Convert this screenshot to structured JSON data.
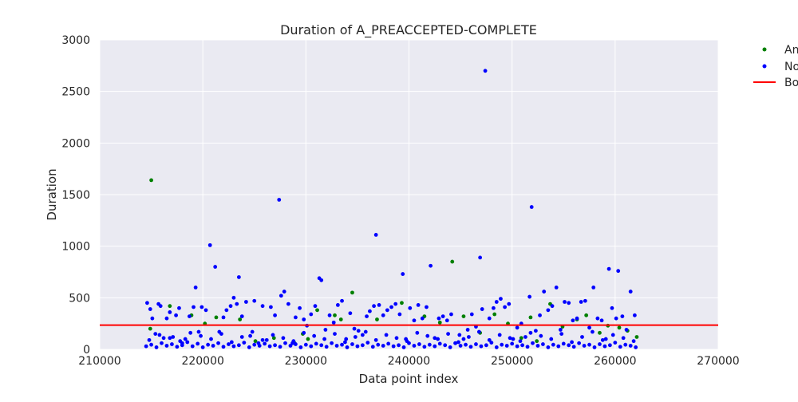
{
  "chart_data": {
    "type": "scatter",
    "title": "Duration of A_PREACCEPTED-COMPLETE",
    "xlabel": "Data point index",
    "ylabel": "Duration",
    "xlim": [
      210000,
      270000
    ],
    "ylim": [
      0,
      3000
    ],
    "xticks": [
      210000,
      220000,
      230000,
      240000,
      250000,
      260000,
      270000
    ],
    "yticks": [
      0,
      500,
      1000,
      1500,
      2000,
      2500,
      3000
    ],
    "grid": true,
    "background": "#eaeaf2",
    "legend": {
      "placement": "outside-top-right",
      "entries": [
        {
          "label": "An",
          "color": "#008000",
          "marker": "point"
        },
        {
          "label": "No",
          "color": "#0000ff",
          "marker": "point"
        },
        {
          "label": "Bo",
          "color": "#ff0000",
          "marker": "line"
        }
      ]
    },
    "threshold": {
      "y": 235,
      "color": "#ff0000"
    },
    "series": [
      {
        "color": "#008000",
        "x": [
          215000,
          214900,
          216800,
          218900,
          220200,
          221300,
          223600,
          225100,
          226900,
          228900,
          229700,
          230200,
          231100,
          232800,
          233400,
          234500,
          236900,
          239300,
          241500,
          243000,
          244200,
          245300,
          246900,
          248300,
          249600,
          250900,
          251800,
          252400,
          253700,
          254900,
          256300,
          257200,
          258500,
          259300,
          260400,
          261200,
          262100
        ],
        "y": [
          1640,
          200,
          420,
          330,
          250,
          310,
          290,
          80,
          110,
          60,
          150,
          100,
          380,
          330,
          290,
          550,
          290,
          450,
          320,
          260,
          850,
          320,
          160,
          340,
          250,
          110,
          310,
          80,
          440,
          220,
          290,
          330,
          160,
          230,
          210,
          180,
          120
        ]
      },
      {
        "color": "#0000ff",
        "x": [
          214600,
          214900,
          215100,
          215400,
          215700,
          215900,
          216200,
          216500,
          216800,
          217100,
          217400,
          217700,
          218000,
          218300,
          218700,
          219100,
          219300,
          219600,
          219900,
          220300,
          220700,
          221200,
          221600,
          222000,
          222300,
          222700,
          223000,
          223300,
          223500,
          223800,
          224200,
          224600,
          225000,
          225400,
          225800,
          226200,
          226600,
          227000,
          227400,
          227600,
          227900,
          228300,
          228700,
          229000,
          229400,
          229800,
          230100,
          230500,
          230900,
          231300,
          231500,
          231900,
          232300,
          232700,
          233100,
          233500,
          233900,
          234300,
          234700,
          235100,
          235500,
          235900,
          236200,
          236600,
          236800,
          237100,
          237500,
          237900,
          238300,
          238700,
          239100,
          239400,
          239700,
          240100,
          240500,
          240900,
          241300,
          241700,
          242100,
          242500,
          242900,
          243300,
          243700,
          244100,
          244500,
          244900,
          245300,
          245700,
          246100,
          246500,
          246900,
          247100,
          247400,
          247800,
          248200,
          248500,
          248900,
          249300,
          249700,
          250100,
          250500,
          250900,
          251300,
          251700,
          251900,
          252300,
          252700,
          253100,
          253500,
          253900,
          254300,
          254700,
          255100,
          255500,
          255900,
          256300,
          256700,
          257100,
          257500,
          257900,
          258300,
          258700,
          259100,
          259400,
          259700,
          260100,
          260300,
          260700,
          261100,
          261500,
          261900
        ],
        "y": [
          450,
          390,
          300,
          150,
          440,
          420,
          110,
          300,
          360,
          120,
          330,
          400,
          60,
          100,
          320,
          410,
          600,
          170,
          410,
          380,
          1010,
          800,
          170,
          310,
          380,
          420,
          500,
          440,
          700,
          320,
          460,
          130,
          470,
          60,
          420,
          90,
          410,
          330,
          1450,
          520,
          560,
          440,
          60,
          310,
          400,
          290,
          230,
          340,
          420,
          690,
          670,
          190,
          330,
          260,
          430,
          470,
          100,
          350,
          200,
          180,
          140,
          320,
          370,
          420,
          1110,
          430,
          330,
          380,
          410,
          440,
          340,
          730,
          100,
          400,
          280,
          430,
          300,
          410,
          810,
          110,
          300,
          320,
          280,
          340,
          60,
          140,
          100,
          190,
          340,
          220,
          890,
          390,
          2700,
          300,
          400,
          460,
          490,
          410,
          440,
          100,
          210,
          250,
          120,
          510,
          1380,
          180,
          330,
          560,
          380,
          420,
          600,
          190,
          460,
          450,
          280,
          300,
          460,
          470,
          210,
          600,
          300,
          280,
          100,
          780,
          400,
          300,
          760,
          320,
          190,
          560,
          330
        ]
      },
      {
        "color": "#0000ff",
        "x": [
          214500,
          215000,
          215500,
          216000,
          216500,
          217000,
          217500,
          218000,
          218500,
          219000,
          219500,
          220000,
          220500,
          221000,
          221500,
          222000,
          222500,
          223000,
          223500,
          224000,
          224500,
          225000,
          225500,
          226000,
          226500,
          227000,
          227500,
          228000,
          228500,
          229000,
          229500,
          230000,
          230500,
          231000,
          231500,
          232000,
          232500,
          233000,
          233500,
          234000,
          234500,
          235000,
          235500,
          236000,
          236500,
          237000,
          237500,
          238000,
          238500,
          239000,
          239500,
          240000,
          240500,
          241000,
          241500,
          242000,
          242500,
          243000,
          243500,
          244000,
          244500,
          245000,
          245500,
          246000,
          246500,
          247000,
          247500,
          248000,
          248500,
          249000,
          249500,
          250000,
          250500,
          251000,
          251500,
          252000,
          252500,
          253000,
          253500,
          254000,
          254500,
          255000,
          255500,
          256000,
          256500,
          257000,
          257500,
          258000,
          258500,
          259000,
          259500,
          260000,
          260500,
          261000,
          261500,
          262000
        ],
        "y": [
          30,
          45,
          20,
          60,
          35,
          50,
          25,
          40,
          70,
          30,
          55,
          20,
          45,
          35,
          60,
          25,
          50,
          30,
          40,
          65,
          20,
          45,
          35,
          55,
          30,
          40,
          25,
          60,
          35,
          50,
          20,
          45,
          30,
          55,
          40,
          25,
          60,
          35,
          45,
          20,
          50,
          30,
          40,
          65,
          25,
          45,
          35,
          55,
          30,
          40,
          20,
          60,
          35,
          50,
          25,
          45,
          30,
          55,
          40,
          20,
          60,
          35,
          45,
          25,
          50,
          30,
          40,
          65,
          20,
          45,
          35,
          55,
          30,
          40,
          25,
          60,
          35,
          50,
          20,
          45,
          30,
          55,
          40,
          25,
          60,
          35,
          45,
          20,
          50,
          30,
          40,
          65,
          25,
          45,
          35,
          20
        ]
      },
      {
        "color": "#0000ff",
        "x": [
          214800,
          215800,
          216800,
          217800,
          218800,
          219800,
          220800,
          221800,
          222800,
          223800,
          224800,
          225800,
          226800,
          227800,
          228800,
          229800,
          230800,
          231800,
          232800,
          233800,
          234800,
          235800,
          236800,
          237800,
          238800,
          239800,
          240800,
          241800,
          242800,
          243800,
          244800,
          245800,
          246800,
          247800,
          248800,
          249800,
          250800,
          251800,
          252800,
          253800,
          254800,
          255800,
          256800,
          257800,
          258800,
          259800,
          260800,
          261800
        ],
        "y": [
          90,
          140,
          110,
          80,
          160,
          130,
          100,
          150,
          70,
          120,
          170,
          90,
          140,
          110,
          80,
          160,
          130,
          100,
          150,
          70,
          120,
          170,
          90,
          140,
          110,
          80,
          160,
          130,
          100,
          150,
          70,
          120,
          170,
          90,
          140,
          110,
          80,
          160,
          130,
          100,
          150,
          70,
          120,
          170,
          90,
          140,
          110,
          80
        ]
      }
    ]
  }
}
